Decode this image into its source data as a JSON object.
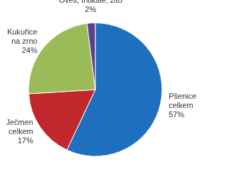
{
  "chart_data": {
    "type": "pie",
    "categories": [
      "Pšenice celkem",
      "Ječmen celkem",
      "Kukuřice na zrno",
      "Oves, tritikale, žito"
    ],
    "values": [
      57,
      17,
      24,
      2
    ],
    "value_labels": [
      "57%",
      "17%",
      "24%",
      "2%"
    ],
    "colors": [
      "#1f6fbf",
      "#c0282e",
      "#9bbb59",
      "#5e3f8f"
    ],
    "data_labels": true
  }
}
